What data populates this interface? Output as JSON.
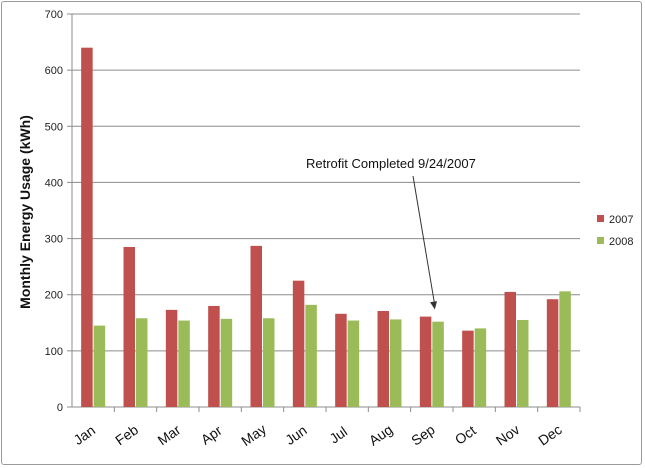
{
  "chart_data": {
    "type": "bar",
    "title": "",
    "xlabel": "",
    "ylabel": "Monthly Energy Usage (kWh)",
    "ylim": [
      0,
      700
    ],
    "yticks": [
      0,
      100,
      200,
      300,
      400,
      500,
      600,
      700
    ],
    "grid": true,
    "legend_position": "right",
    "categories": [
      "Jan",
      "Feb",
      "Mar",
      "Apr",
      "May",
      "Jun",
      "Jul",
      "Aug",
      "Sep",
      "Oct",
      "Nov",
      "Dec"
    ],
    "series": [
      {
        "name": "2007",
        "color": "#c0504d",
        "values": [
          640,
          285,
          173,
          180,
          287,
          225,
          166,
          171,
          161,
          136,
          205,
          192
        ]
      },
      {
        "name": "2008",
        "color": "#9bbb59",
        "values": [
          145,
          158,
          154,
          157,
          158,
          182,
          154,
          156,
          152,
          140,
          155,
          206
        ]
      }
    ],
    "annotation": {
      "text": "Retrofit Completed 9/24/2007",
      "points_to_category": "Sep",
      "points_to_value": 170
    }
  }
}
